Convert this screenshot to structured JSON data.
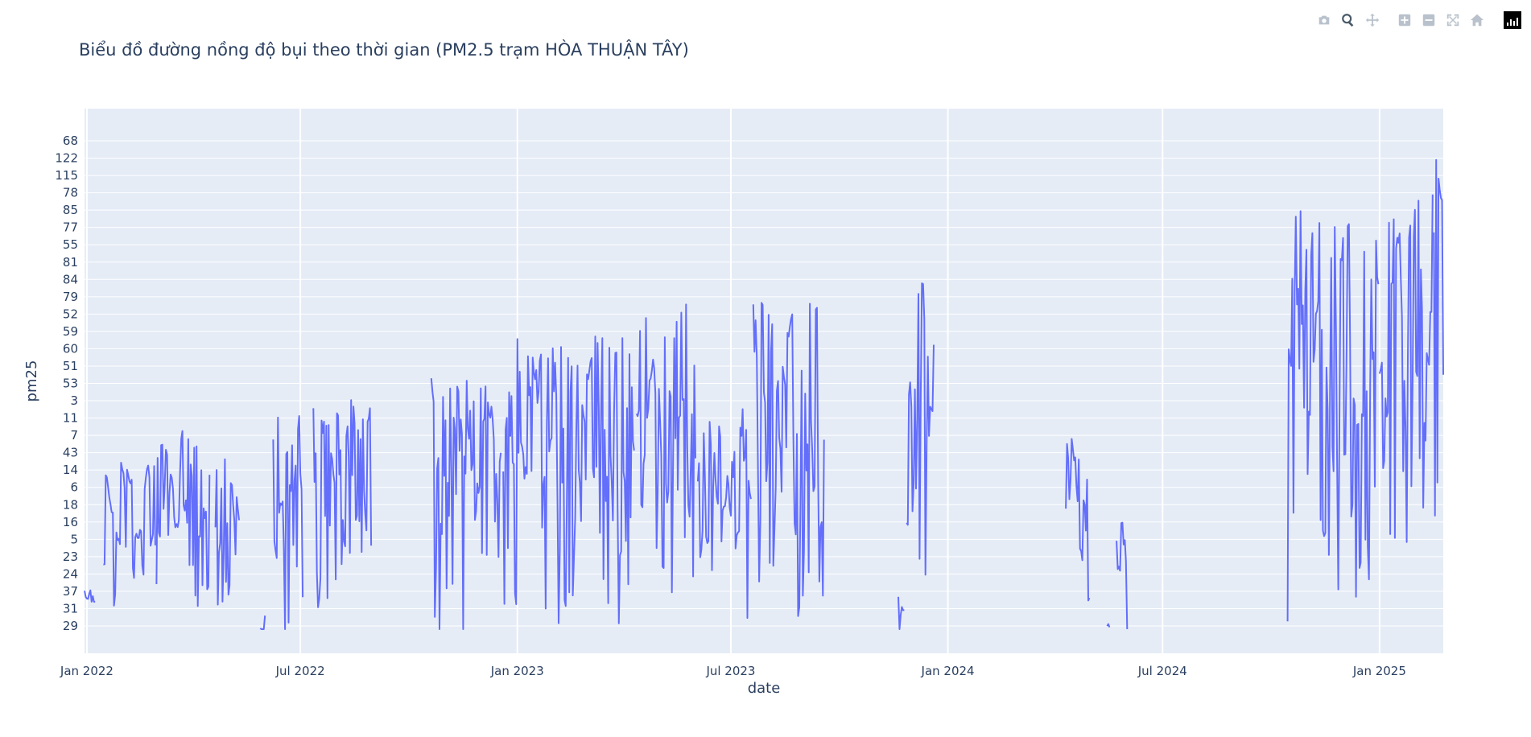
{
  "title": "Biểu đồ đường nồng độ bụi theo thời gian (PM2.5 trạm HÒA THUẬN TÂY)",
  "toolbar": {
    "icons": [
      "camera-icon",
      "zoom-icon",
      "pan-icon",
      "zoom-in-icon",
      "zoom-out-icon",
      "autoscale-icon",
      "reset-axes-icon",
      "plotly-logo-icon"
    ],
    "active": "zoom-icon"
  },
  "colors": {
    "line": "#636efa",
    "plot_bg": "#e5ecf6",
    "grid": "#ffffff",
    "text": "#2a3f5f"
  },
  "chart_data": {
    "type": "line",
    "title": "Biểu đồ đường nồng độ bụi theo thời gian (PM2.5 trạm HÒA THUẬN TÂY)",
    "xlabel": "date",
    "ylabel": "pm25",
    "x_axis": "date",
    "y_axis": "categorical",
    "xlim": [
      "2021-12-30",
      "2025-02-24"
    ],
    "y_categories": [
      "29",
      "31",
      "37",
      "24",
      "23",
      "5",
      "16",
      "18",
      "6",
      "14",
      "43",
      "7",
      "11",
      "3",
      "53",
      "51",
      "60",
      "59",
      "52",
      "79",
      "84",
      "81",
      "55",
      "77",
      "85",
      "78",
      "115",
      "122",
      "68"
    ],
    "x_ticks": [
      {
        "date": "2022-01-01",
        "label": "Jan 2022"
      },
      {
        "date": "2022-07-01",
        "label": "Jul 2022"
      },
      {
        "date": "2023-01-01",
        "label": "Jan 2023"
      },
      {
        "date": "2023-07-01",
        "label": "Jul 2023"
      },
      {
        "date": "2024-01-01",
        "label": "Jan 2024"
      },
      {
        "date": "2024-07-01",
        "label": "Jul 2024"
      },
      {
        "date": "2025-01-01",
        "label": "Jan 2025"
      }
    ],
    "grid": true,
    "series": [
      {
        "segments": [
          {
            "start": "2021-12-30",
            "end": "2022-01-08",
            "seed": 3,
            "volatility": 0.18,
            "range": [
              0.05,
              0.18
            ]
          },
          {
            "start": "2022-01-15",
            "end": "2022-02-28",
            "seed": 7,
            "volatility": 0.45,
            "range": [
              0.0,
              0.34
            ]
          },
          {
            "start": "2022-03-01",
            "end": "2022-04-15",
            "seed": 11,
            "volatility": 0.9,
            "range": [
              0.0,
              0.42
            ]
          },
          {
            "start": "2022-04-20",
            "end": "2022-05-10",
            "seed": 13,
            "volatility": 0.9,
            "range": [
              0.0,
              0.35
            ]
          },
          {
            "start": "2022-05-28",
            "end": "2022-06-01",
            "seed": 17,
            "volatility": 0.2,
            "range": [
              0.0,
              0.03
            ]
          },
          {
            "start": "2022-06-08",
            "end": "2022-07-03",
            "seed": 19,
            "volatility": 1.0,
            "range": [
              0.0,
              0.44
            ]
          },
          {
            "start": "2022-07-12",
            "end": "2022-08-30",
            "seed": 23,
            "volatility": 1.0,
            "range": [
              0.0,
              0.47
            ]
          },
          {
            "start": "2022-10-20",
            "end": "2022-12-18",
            "seed": 29,
            "volatility": 1.0,
            "range": [
              0.0,
              0.52
            ]
          },
          {
            "start": "2022-12-20",
            "end": "2023-04-10",
            "seed": 31,
            "volatility": 1.0,
            "range": [
              0.0,
              0.6
            ]
          },
          {
            "start": "2023-04-12",
            "end": "2023-06-01",
            "seed": 37,
            "volatility": 1.0,
            "range": [
              0.0,
              0.67
            ]
          },
          {
            "start": "2023-06-03",
            "end": "2023-07-18",
            "seed": 41,
            "volatility": 1.0,
            "range": [
              0.0,
              0.45
            ]
          },
          {
            "start": "2023-07-20",
            "end": "2023-09-18",
            "seed": 43,
            "volatility": 1.0,
            "range": [
              0.0,
              0.67
            ]
          },
          {
            "start": "2023-11-20",
            "end": "2023-11-25",
            "seed": 47,
            "volatility": 0.6,
            "range": [
              0.0,
              0.06
            ]
          },
          {
            "start": "2023-11-27",
            "end": "2023-12-20",
            "seed": 53,
            "volatility": 1.0,
            "range": [
              0.05,
              0.71
            ]
          },
          {
            "start": "2024-04-10",
            "end": "2024-04-30",
            "seed": 59,
            "volatility": 1.0,
            "range": [
              0.0,
              0.44
            ]
          },
          {
            "start": "2024-05-15",
            "end": "2024-05-17",
            "seed": 61,
            "volatility": 0.3,
            "range": [
              0.0,
              0.02
            ]
          },
          {
            "start": "2024-05-23",
            "end": "2024-06-01",
            "seed": 67,
            "volatility": 0.9,
            "range": [
              0.0,
              0.27
            ]
          },
          {
            "start": "2024-10-15",
            "end": "2024-12-31",
            "seed": 71,
            "volatility": 1.0,
            "range": [
              0.0,
              0.86
            ]
          },
          {
            "start": "2025-01-01",
            "end": "2025-02-15",
            "seed": 73,
            "volatility": 1.0,
            "range": [
              0.0,
              0.93
            ]
          },
          {
            "start": "2025-02-16",
            "end": "2025-02-24",
            "seed": 79,
            "volatility": 1.0,
            "range": [
              0.1,
              0.99
            ]
          }
        ]
      }
    ]
  }
}
